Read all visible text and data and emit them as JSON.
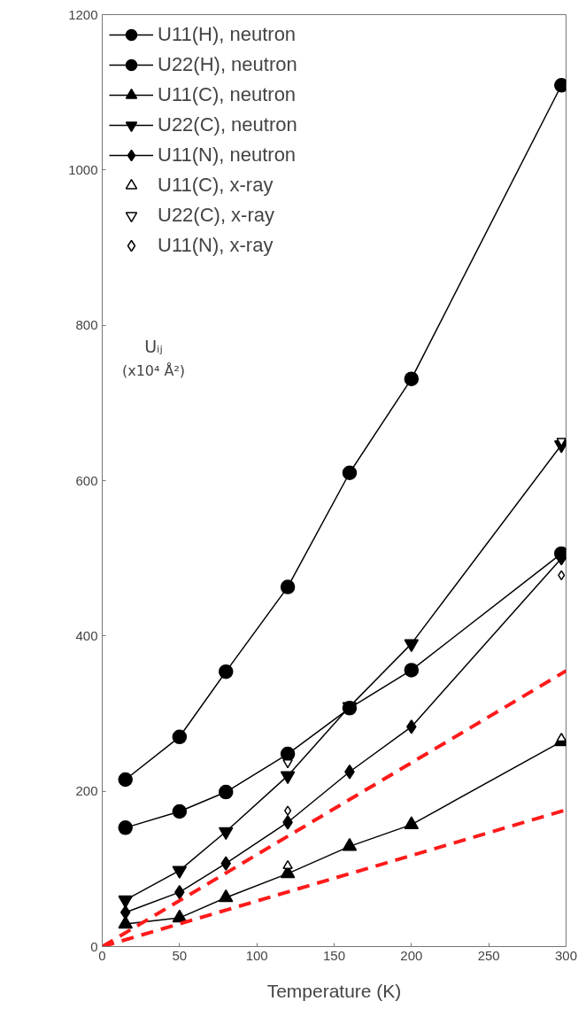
{
  "chart_data": {
    "type": "line",
    "xlabel": "Temperature (K)",
    "ylabel": "Uᵢⱼ\n(x10⁴ Å²)",
    "xlim": [
      0,
      300
    ],
    "ylim": [
      0,
      1200
    ],
    "xticks": [
      0,
      50,
      100,
      150,
      200,
      250,
      300
    ],
    "yticks": [
      0,
      200,
      400,
      600,
      800,
      1000,
      1200
    ],
    "grid": false,
    "legend": "top left",
    "line_style": "solid",
    "series": [
      {
        "name": "U11(H), neutron",
        "marker": "circle",
        "color": "#000000",
        "x": [
          15,
          50,
          80,
          120,
          160,
          200,
          297
        ],
        "values": [
          153,
          174,
          199,
          248,
          307,
          356,
          506
        ]
      },
      {
        "name": "U22(H), neutron",
        "marker": "circle",
        "color": "#000000",
        "x": [
          15,
          50,
          80,
          120,
          160,
          200,
          297
        ],
        "values": [
          215,
          270,
          354,
          463,
          610,
          731,
          1109
        ]
      },
      {
        "name": "U11(C), neutron",
        "marker": "triangle",
        "color": "#000000",
        "x": [
          15,
          50,
          80,
          120,
          160,
          200,
          297
        ],
        "values": [
          29,
          37,
          63,
          94,
          129,
          157,
          264
        ]
      },
      {
        "name": "U22(C), neutron",
        "marker": "triangle_down",
        "color": "#000000",
        "x": [
          15,
          50,
          80,
          120,
          160,
          200,
          297
        ],
        "values": [
          60,
          98,
          148,
          220,
          309,
          390,
          646
        ]
      },
      {
        "name": "U11(N), neutron",
        "marker": "diamond",
        "color": "#000000",
        "x": [
          15,
          50,
          80,
          120,
          160,
          200,
          297
        ],
        "values": [
          44,
          70,
          107,
          160,
          225,
          283,
          500
        ]
      },
      {
        "name": "U11(C), x-ray",
        "type": "scatter",
        "marker": "triangle",
        "color": "#000000",
        "x": [
          120,
          297
        ],
        "values": [
          104,
          268
        ]
      },
      {
        "name": "U22(C), x-ray",
        "type": "scatter",
        "marker": "triangle_down",
        "color": "#000000",
        "x": [
          120,
          297
        ],
        "values": [
          237,
          651
        ]
      },
      {
        "name": "U11(N), x-ray",
        "type": "scatter",
        "marker": "diamond",
        "color": "#000000",
        "x": [
          120,
          297
        ],
        "values": [
          175,
          478
        ]
      },
      {
        "marker": "none",
        "line_style": "dashed",
        "color": "#ff1a1a",
        "x": [
          0,
          300
        ],
        "values": [
          0,
          355
        ]
      },
      {
        "marker": "none",
        "line_style": "dashed",
        "color": "#ff1a1a",
        "x": [
          0,
          300
        ],
        "values": [
          0,
          176
        ]
      }
    ]
  }
}
